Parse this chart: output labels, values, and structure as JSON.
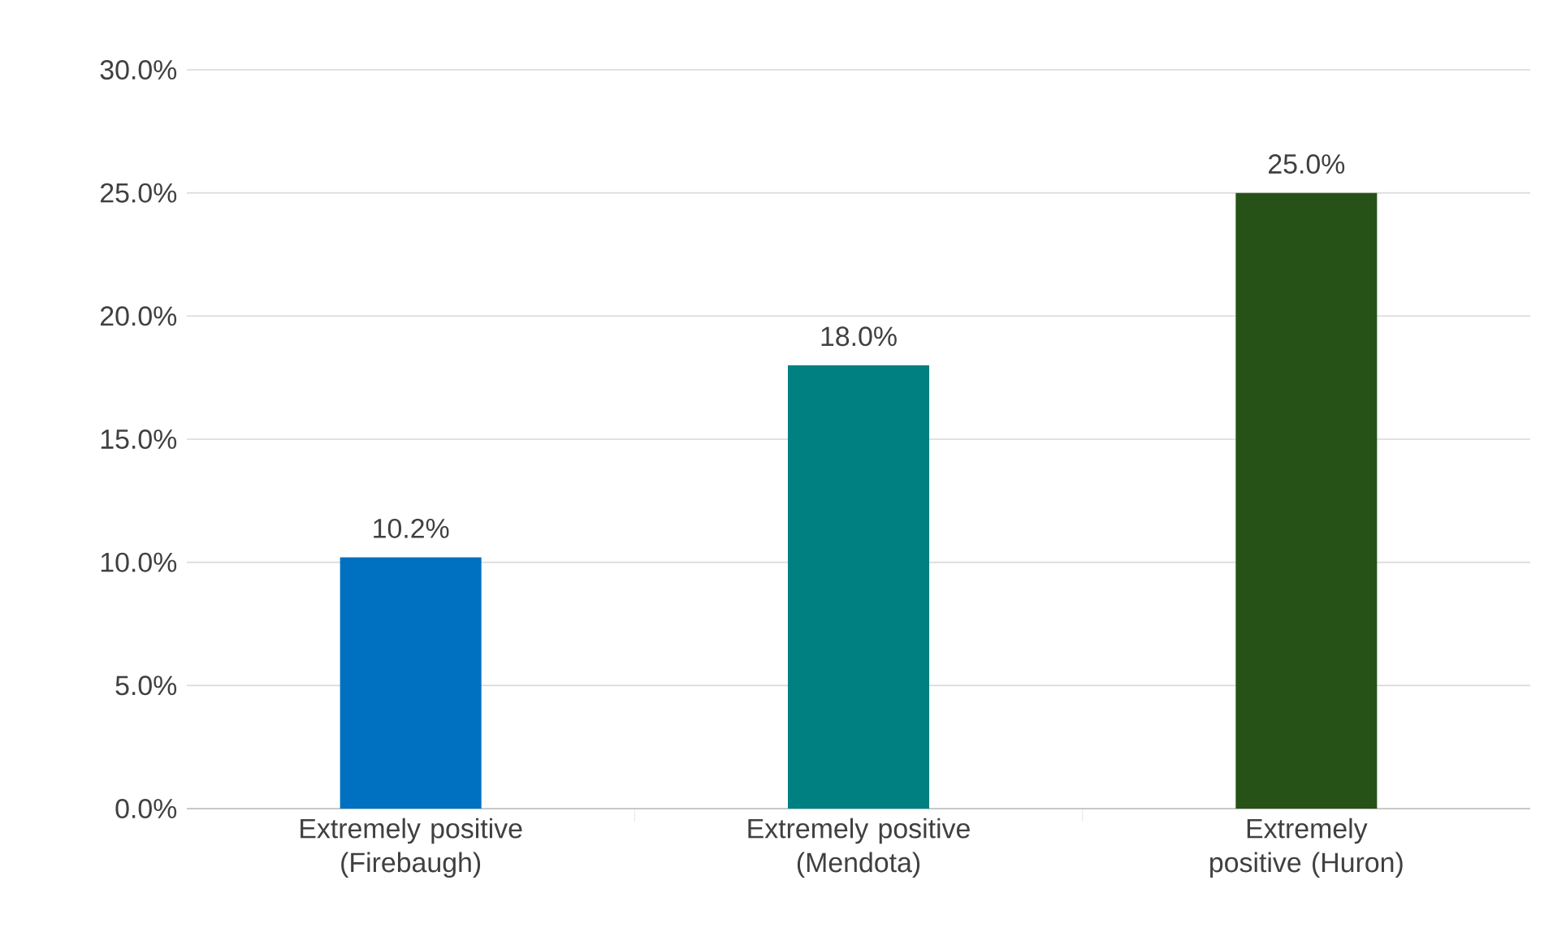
{
  "chart_data": {
    "type": "bar",
    "categories": [
      "Extremely positive (Firebaugh)",
      "Extremely positive (Mendota)",
      "Extremely positive (Huron)"
    ],
    "values": [
      10.2,
      18.0,
      25.0
    ],
    "colors": [
      "#0070c0",
      "#008080",
      "#265218"
    ],
    "value_labels": [
      "10.2%",
      "18.0%",
      "25.0%"
    ],
    "ylim": [
      0,
      30
    ],
    "yticks": [
      {
        "value": 0,
        "label": "0.0%"
      },
      {
        "value": 5,
        "label": "5.0%"
      },
      {
        "value": 10,
        "label": "10.0%"
      },
      {
        "value": 15,
        "label": "15.0%"
      },
      {
        "value": 20,
        "label": "20.0%"
      },
      {
        "value": 25,
        "label": "25.0%"
      },
      {
        "value": 30,
        "label": "30.0%"
      }
    ],
    "grid": "y"
  }
}
